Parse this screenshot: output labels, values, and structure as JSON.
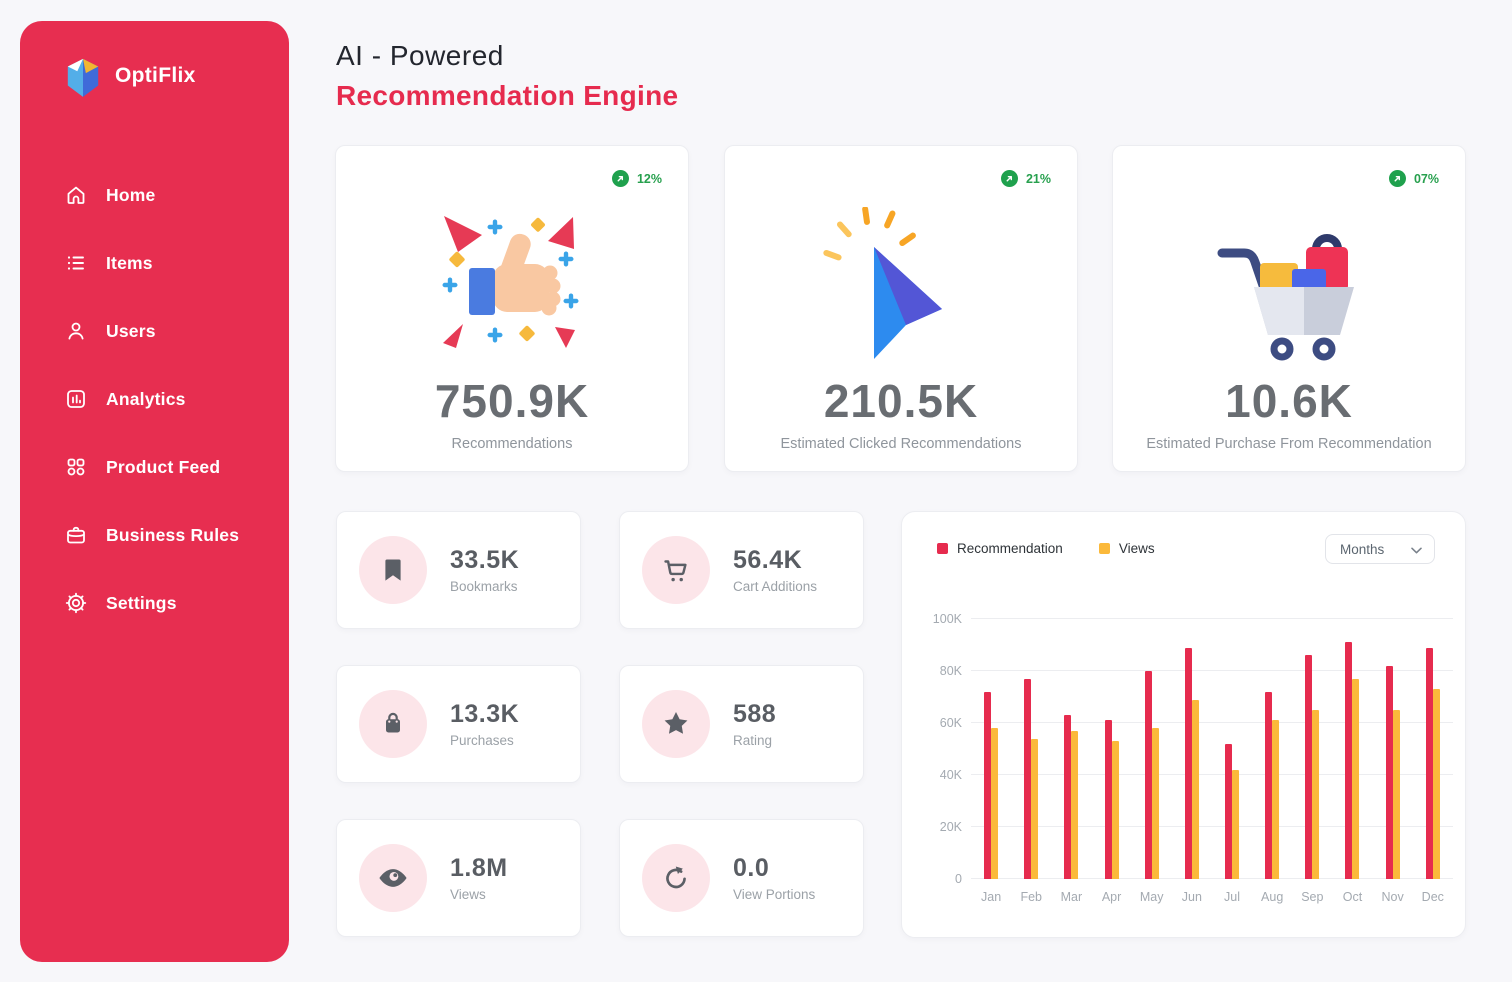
{
  "app": {
    "name": "OptiFlix"
  },
  "header": {
    "title_line1": "AI - Powered",
    "title_line2": "Recommendation Engine"
  },
  "sidebar": {
    "items": [
      {
        "label": "Home",
        "icon": "home-icon"
      },
      {
        "label": "Items",
        "icon": "list-icon"
      },
      {
        "label": "Users",
        "icon": "user-icon"
      },
      {
        "label": "Analytics",
        "icon": "analytics-icon"
      },
      {
        "label": "Product Feed",
        "icon": "grid-icon"
      },
      {
        "label": "Business Rules",
        "icon": "briefcase-icon"
      },
      {
        "label": "Settings",
        "icon": "gear-icon"
      }
    ]
  },
  "stat_cards": [
    {
      "value": "750.9K",
      "label": "Recommendations",
      "change": "12%",
      "icon": "thumbs-up-illustration"
    },
    {
      "value": "210.5K",
      "label": "Estimated Clicked Recommendations",
      "change": "21%",
      "icon": "cursor-click-illustration"
    },
    {
      "value": "10.6K",
      "label": "Estimated Purchase From Recommendation",
      "change": "07%",
      "icon": "shopping-cart-illustration"
    }
  ],
  "mini_cards": [
    {
      "value": "33.5K",
      "label": "Bookmarks",
      "icon": "bookmark-icon"
    },
    {
      "value": "56.4K",
      "label": "Cart Additions",
      "icon": "cart-icon"
    },
    {
      "value": "13.3K",
      "label": "Purchases",
      "icon": "shopping-bag-icon"
    },
    {
      "value": "588",
      "label": "Rating",
      "icon": "star-icon"
    },
    {
      "value": "1.8M",
      "label": "Views",
      "icon": "eye-icon"
    },
    {
      "value": "0.0",
      "label": "View Portions",
      "icon": "refresh-icon"
    }
  ],
  "chart": {
    "filter_label": "Months"
  },
  "chart_data": {
    "type": "bar",
    "title": "",
    "xlabel": "",
    "ylabel": "",
    "categories": [
      "Jan",
      "Feb",
      "Mar",
      "Apr",
      "May",
      "Jun",
      "Jul",
      "Aug",
      "Sep",
      "Oct",
      "Nov",
      "Dec"
    ],
    "series": [
      {
        "name": "Recommendation",
        "color": "#E62B4E",
        "values": [
          72000,
          77000,
          63000,
          61000,
          80000,
          89000,
          52000,
          72000,
          86000,
          91000,
          82000,
          89000
        ]
      },
      {
        "name": "Views",
        "color": "#FBB93B",
        "values": [
          58000,
          54000,
          57000,
          53000,
          58000,
          69000,
          42000,
          61000,
          65000,
          77000,
          65000,
          73000
        ]
      }
    ],
    "ylim": [
      0,
      100000
    ],
    "yticks": [
      {
        "value": 0,
        "label": "0"
      },
      {
        "value": 20000,
        "label": "20K"
      },
      {
        "value": 40000,
        "label": "40K"
      },
      {
        "value": 60000,
        "label": "60K"
      },
      {
        "value": 80000,
        "label": "80K"
      },
      {
        "value": 100000,
        "label": "100K"
      }
    ],
    "grid": true,
    "legend_position": "top-left"
  },
  "colors": {
    "sidebar": "#E72E50",
    "accent_red": "#E62B4E",
    "bar_yellow": "#FBB93B",
    "badge_green": "#1FA14D",
    "mini_icon_bg": "#FCE5E9",
    "background": "#F7F7FA"
  }
}
